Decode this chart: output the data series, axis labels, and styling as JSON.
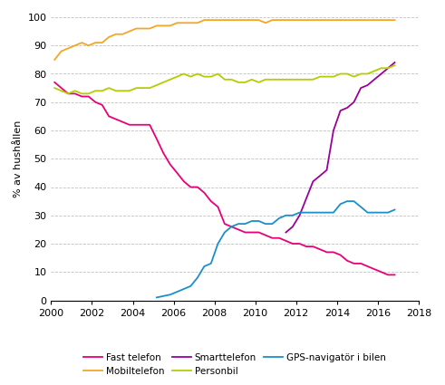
{
  "title": "",
  "ylabel": "% av hushållen",
  "xlim": [
    2000,
    2018
  ],
  "ylim": [
    0,
    100
  ],
  "xticks": [
    2000,
    2002,
    2004,
    2006,
    2008,
    2010,
    2012,
    2014,
    2016,
    2018
  ],
  "yticks": [
    0,
    10,
    20,
    30,
    40,
    50,
    60,
    70,
    80,
    90,
    100
  ],
  "fast_telefon": {
    "label": "Fast telefon",
    "color": "#e8007a",
    "x": [
      2000.17,
      2000.5,
      2000.83,
      2001.17,
      2001.5,
      2001.83,
      2002.17,
      2002.5,
      2002.83,
      2003.17,
      2003.5,
      2003.83,
      2004.17,
      2004.5,
      2004.83,
      2005.17,
      2005.5,
      2005.83,
      2006.17,
      2006.5,
      2006.83,
      2007.17,
      2007.5,
      2007.83,
      2008.17,
      2008.5,
      2008.83,
      2009.17,
      2009.5,
      2009.83,
      2010.17,
      2010.5,
      2010.83,
      2011.17,
      2011.5,
      2011.83,
      2012.17,
      2012.5,
      2012.83,
      2013.17,
      2013.5,
      2013.83,
      2014.17,
      2014.5,
      2014.83,
      2015.17,
      2015.5,
      2015.83,
      2016.17,
      2016.5,
      2016.83
    ],
    "y": [
      77,
      75,
      73,
      73,
      72,
      72,
      70,
      69,
      65,
      64,
      63,
      62,
      62,
      62,
      62,
      57,
      52,
      48,
      45,
      42,
      40,
      40,
      38,
      35,
      33,
      27,
      26,
      25,
      24,
      24,
      24,
      23,
      22,
      22,
      21,
      20,
      20,
      19,
      19,
      18,
      17,
      17,
      16,
      14,
      13,
      13,
      12,
      11,
      10,
      9,
      9
    ]
  },
  "mobiltelefon": {
    "label": "Mobiltelefon",
    "color": "#f5a623",
    "x": [
      2000.17,
      2000.5,
      2000.83,
      2001.17,
      2001.5,
      2001.83,
      2002.17,
      2002.5,
      2002.83,
      2003.17,
      2003.5,
      2003.83,
      2004.17,
      2004.5,
      2004.83,
      2005.17,
      2005.5,
      2005.83,
      2006.17,
      2006.5,
      2006.83,
      2007.17,
      2007.5,
      2007.83,
      2008.17,
      2008.5,
      2008.83,
      2009.17,
      2009.5,
      2009.83,
      2010.17,
      2010.5,
      2010.83,
      2011.17,
      2011.5,
      2011.83,
      2012.17,
      2012.5,
      2012.83,
      2013.17,
      2013.5,
      2013.83,
      2014.17,
      2014.5,
      2014.83,
      2015.17,
      2015.5,
      2015.83,
      2016.17,
      2016.5,
      2016.83
    ],
    "y": [
      85,
      88,
      89,
      90,
      91,
      90,
      91,
      91,
      93,
      94,
      94,
      95,
      96,
      96,
      96,
      97,
      97,
      97,
      98,
      98,
      98,
      98,
      99,
      99,
      99,
      99,
      99,
      99,
      99,
      99,
      99,
      98,
      99,
      99,
      99,
      99,
      99,
      99,
      99,
      99,
      99,
      99,
      99,
      99,
      99,
      99,
      99,
      99,
      99,
      99,
      99
    ]
  },
  "smarttelefon": {
    "label": "Smarttelefon",
    "color": "#9b0099",
    "x": [
      2011.5,
      2011.83,
      2012.17,
      2012.5,
      2012.83,
      2013.17,
      2013.5,
      2013.83,
      2014.17,
      2014.5,
      2014.83,
      2015.17,
      2015.5,
      2015.83,
      2016.17,
      2016.5,
      2016.83
    ],
    "y": [
      24,
      26,
      30,
      36,
      42,
      44,
      46,
      60,
      67,
      68,
      70,
      75,
      76,
      78,
      80,
      82,
      84
    ]
  },
  "personbil": {
    "label": "Personbil",
    "color": "#b5cc00",
    "x": [
      2000.17,
      2000.5,
      2000.83,
      2001.17,
      2001.5,
      2001.83,
      2002.17,
      2002.5,
      2002.83,
      2003.17,
      2003.5,
      2003.83,
      2004.17,
      2004.5,
      2004.83,
      2005.17,
      2005.5,
      2005.83,
      2006.17,
      2006.5,
      2006.83,
      2007.17,
      2007.5,
      2007.83,
      2008.17,
      2008.5,
      2008.83,
      2009.17,
      2009.5,
      2009.83,
      2010.17,
      2010.5,
      2010.83,
      2011.17,
      2011.5,
      2011.83,
      2012.17,
      2012.5,
      2012.83,
      2013.17,
      2013.5,
      2013.83,
      2014.17,
      2014.5,
      2014.83,
      2015.17,
      2015.5,
      2015.83,
      2016.17,
      2016.5,
      2016.83
    ],
    "y": [
      75,
      74,
      73,
      74,
      73,
      73,
      74,
      74,
      75,
      74,
      74,
      74,
      75,
      75,
      75,
      76,
      77,
      78,
      79,
      80,
      79,
      80,
      79,
      79,
      80,
      78,
      78,
      77,
      77,
      78,
      77,
      78,
      78,
      78,
      78,
      78,
      78,
      78,
      78,
      79,
      79,
      79,
      80,
      80,
      79,
      80,
      80,
      81,
      82,
      82,
      83
    ]
  },
  "gps": {
    "label": "GPS-navigatör i bilen",
    "color": "#1a8fca",
    "x": [
      2005.17,
      2005.5,
      2005.83,
      2006.17,
      2006.5,
      2006.83,
      2007.17,
      2007.5,
      2007.83,
      2008.17,
      2008.5,
      2008.83,
      2009.17,
      2009.5,
      2009.83,
      2010.17,
      2010.5,
      2010.83,
      2011.17,
      2011.5,
      2011.83,
      2012.17,
      2012.5,
      2012.83,
      2013.17,
      2013.5,
      2013.83,
      2014.17,
      2014.5,
      2014.83,
      2015.17,
      2015.5,
      2015.83,
      2016.17,
      2016.5,
      2016.83
    ],
    "y": [
      1,
      1.5,
      2,
      3,
      4,
      5,
      8,
      12,
      13,
      20,
      24,
      26,
      27,
      27,
      28,
      28,
      27,
      27,
      29,
      30,
      30,
      31,
      31,
      31,
      31,
      31,
      31,
      34,
      35,
      35,
      33,
      31,
      31,
      31,
      31,
      32
    ]
  },
  "figsize": [
    4.91,
    4.25
  ],
  "dpi": 100
}
